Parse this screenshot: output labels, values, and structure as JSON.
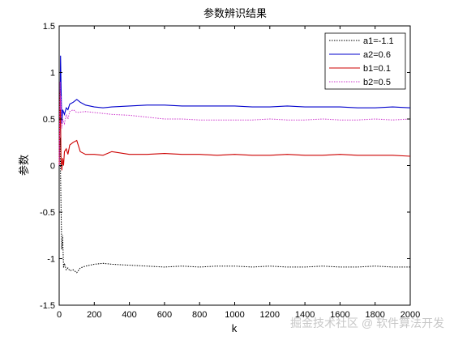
{
  "chart_data": {
    "type": "line",
    "title": "参数辨识结果",
    "xlabel": "k",
    "ylabel": "参数",
    "xlim": [
      0,
      2000
    ],
    "ylim": [
      -1.5,
      1.5
    ],
    "xticks": [
      0,
      200,
      400,
      600,
      800,
      1000,
      1200,
      1400,
      1600,
      1800,
      2000
    ],
    "yticks": [
      -1.5,
      -1,
      -0.5,
      0,
      0.5,
      1,
      1.5
    ],
    "ytick_labels": [
      "-1.5",
      "-1",
      "-0.5",
      "0",
      "0.5",
      "1",
      "1.5"
    ],
    "grid": false,
    "legend_position": "top-right",
    "series": [
      {
        "name": "a1=-1.1",
        "color": "#000000",
        "style": "dotted",
        "x": [
          0,
          5,
          10,
          15,
          20,
          25,
          30,
          40,
          50,
          60,
          80,
          100,
          120,
          150,
          200,
          250,
          300,
          400,
          500,
          600,
          700,
          800,
          900,
          1000,
          1100,
          1200,
          1300,
          1400,
          1500,
          1600,
          1700,
          1800,
          1900,
          2000
        ],
        "y": [
          0,
          0.3,
          -0.4,
          -0.9,
          -0.75,
          -1.1,
          -1.05,
          -1.12,
          -1.1,
          -1.13,
          -1.12,
          -1.15,
          -1.1,
          -1.08,
          -1.06,
          -1.05,
          -1.06,
          -1.07,
          -1.08,
          -1.09,
          -1.08,
          -1.09,
          -1.08,
          -1.08,
          -1.09,
          -1.08,
          -1.09,
          -1.09,
          -1.08,
          -1.09,
          -1.09,
          -1.08,
          -1.09,
          -1.09
        ]
      },
      {
        "name": "a2=0.6",
        "color": "#0000cc",
        "style": "solid",
        "x": [
          0,
          5,
          8,
          10,
          15,
          20,
          30,
          40,
          50,
          60,
          80,
          100,
          120,
          150,
          200,
          250,
          300,
          400,
          500,
          600,
          700,
          800,
          900,
          1000,
          1100,
          1200,
          1300,
          1400,
          1500,
          1600,
          1700,
          1800,
          1900,
          2000
        ],
        "y": [
          0,
          0.6,
          1.18,
          0.9,
          0.45,
          0.6,
          0.55,
          0.62,
          0.6,
          0.66,
          0.68,
          0.71,
          0.68,
          0.65,
          0.63,
          0.62,
          0.63,
          0.64,
          0.65,
          0.65,
          0.64,
          0.64,
          0.64,
          0.64,
          0.63,
          0.63,
          0.64,
          0.63,
          0.63,
          0.63,
          0.62,
          0.62,
          0.63,
          0.62
        ]
      },
      {
        "name": "b1=0.1",
        "color": "#cc0000",
        "style": "solid",
        "x": [
          0,
          5,
          8,
          10,
          15,
          20,
          25,
          30,
          40,
          50,
          60,
          80,
          100,
          120,
          150,
          200,
          250,
          300,
          400,
          500,
          600,
          700,
          800,
          900,
          1000,
          1100,
          1200,
          1300,
          1400,
          1500,
          1600,
          1700,
          1800,
          1900,
          2000
        ],
        "y": [
          0,
          0.8,
          0.5,
          0.1,
          -0.05,
          0.08,
          0.0,
          0.15,
          0.18,
          0.12,
          0.22,
          0.25,
          0.27,
          0.15,
          0.12,
          0.12,
          0.11,
          0.15,
          0.12,
          0.12,
          0.13,
          0.12,
          0.12,
          0.11,
          0.12,
          0.11,
          0.11,
          0.12,
          0.11,
          0.11,
          0.12,
          0.11,
          0.11,
          0.11,
          0.1
        ]
      },
      {
        "name": "b2=0.5",
        "color": "#cc33cc",
        "style": "dotted",
        "x": [
          0,
          5,
          8,
          10,
          15,
          20,
          30,
          40,
          50,
          60,
          80,
          100,
          150,
          200,
          250,
          300,
          400,
          500,
          600,
          700,
          800,
          900,
          1000,
          1100,
          1200,
          1300,
          1400,
          1500,
          1600,
          1700,
          1800,
          1900,
          2000
        ],
        "y": [
          0,
          0.9,
          0.6,
          0.75,
          0.4,
          0.5,
          0.45,
          0.55,
          0.5,
          0.58,
          0.6,
          0.57,
          0.58,
          0.57,
          0.56,
          0.55,
          0.54,
          0.52,
          0.5,
          0.5,
          0.49,
          0.49,
          0.49,
          0.49,
          0.5,
          0.49,
          0.49,
          0.5,
          0.49,
          0.49,
          0.5,
          0.49,
          0.5
        ]
      }
    ]
  },
  "watermark_text": "掘金技术社区 @ 软件算法开发"
}
